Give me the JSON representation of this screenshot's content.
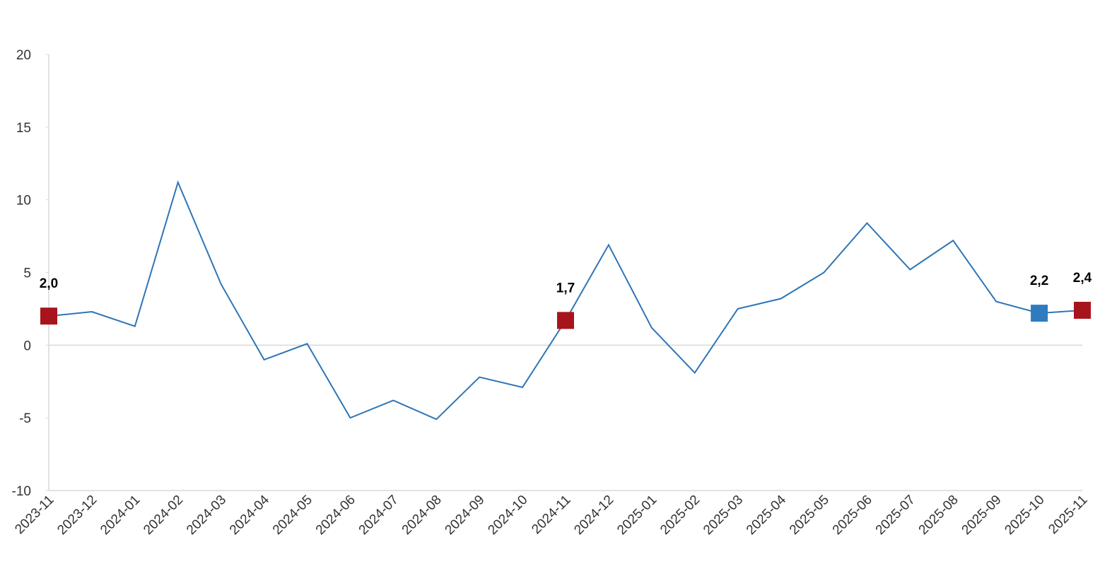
{
  "chart_data": {
    "type": "line",
    "categories": [
      "2023-11",
      "2023-12",
      "2024-01",
      "2024-02",
      "2024-03",
      "2024-04",
      "2024-05",
      "2024-06",
      "2024-07",
      "2024-08",
      "2024-09",
      "2024-10",
      "2024-11",
      "2024-12",
      "2025-01",
      "2025-02",
      "2025-03",
      "2025-04",
      "2025-05",
      "2025-06",
      "2025-07",
      "2025-08",
      "2025-09",
      "2025-10",
      "2025-11"
    ],
    "values": [
      2.0,
      2.3,
      1.3,
      11.2,
      4.2,
      -1.0,
      0.1,
      -5.0,
      -3.8,
      -5.1,
      -2.2,
      -2.9,
      1.7,
      6.9,
      1.2,
      -1.9,
      2.5,
      3.2,
      5.0,
      8.4,
      5.2,
      7.2,
      3.0,
      2.2,
      2.4
    ],
    "value_labels": [
      "2,0",
      null,
      null,
      null,
      null,
      null,
      null,
      null,
      null,
      null,
      null,
      null,
      "1,7",
      null,
      null,
      null,
      null,
      null,
      null,
      null,
      null,
      null,
      null,
      "2,2",
      "2,4"
    ],
    "marker_colors": [
      "#a8141c",
      null,
      null,
      null,
      null,
      null,
      null,
      null,
      null,
      null,
      null,
      null,
      "#a8141c",
      null,
      null,
      null,
      null,
      null,
      null,
      null,
      null,
      null,
      null,
      "#2e7bbf",
      "#a8141c"
    ],
    "color": "#2e75b6",
    "ylim": [
      -10,
      20
    ],
    "yticks": [
      -10,
      -5,
      0,
      5,
      10,
      15,
      20
    ]
  }
}
